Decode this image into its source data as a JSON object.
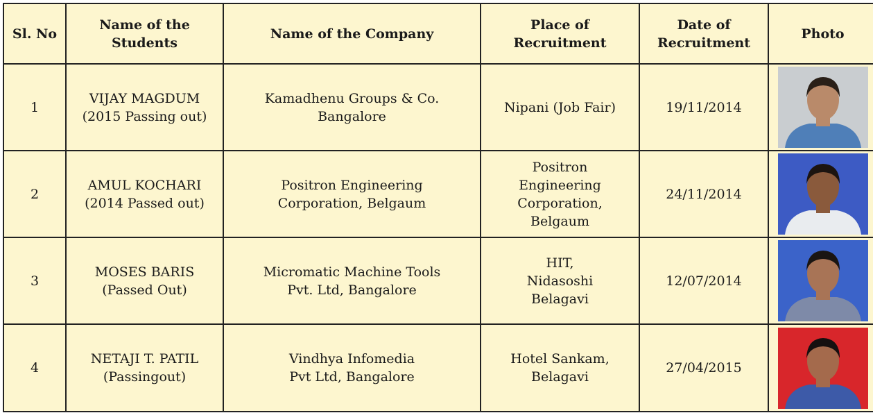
{
  "table": {
    "header": [
      [
        "Sl. No"
      ],
      [
        "Name of the",
        "Students"
      ],
      [
        "Name of the Company"
      ],
      [
        "Place of",
        "Recruitment"
      ],
      [
        "Date of",
        "Recruitment"
      ],
      [
        "Photo"
      ]
    ],
    "rows": [
      [
        [
          "1"
        ],
        [
          "VIJAY MAGDUM",
          "(2015 Passing out)"
        ],
        [
          "Kamadhenu  Groups & Co.",
          "Bangalore"
        ],
        [
          "Nipani (Job Fair)"
        ],
        [
          "19/11/2014"
        ]
      ],
      [
        [
          "2"
        ],
        [
          "AMUL KOCHARI",
          "(2014 Passed out)"
        ],
        [
          "Positron Engineering",
          "Corporation, Belgaum"
        ],
        [
          "Positron",
          "Engineering",
          "Corporation,",
          "Belgaum"
        ],
        [
          "24/11/2014"
        ]
      ],
      [
        [
          "3"
        ],
        [
          "MOSES BARIS",
          "(Passed Out)"
        ],
        [
          "Micromatic Machine Tools",
          "Pvt. Ltd, Bangalore"
        ],
        [
          "HIT,",
          "Nidasoshi",
          "Belagavi"
        ],
        [
          "12/07/2014"
        ]
      ],
      [
        [
          "4"
        ],
        [
          "NETAJI T. PATIL",
          "(Passingout)"
        ],
        [
          "Vindhya Infomedia",
          "Pvt Ltd, Bangalore"
        ],
        [
          "Hotel Sankam,",
          "Belagavi"
        ],
        [
          "27/04/2015"
        ]
      ]
    ]
  }
}
